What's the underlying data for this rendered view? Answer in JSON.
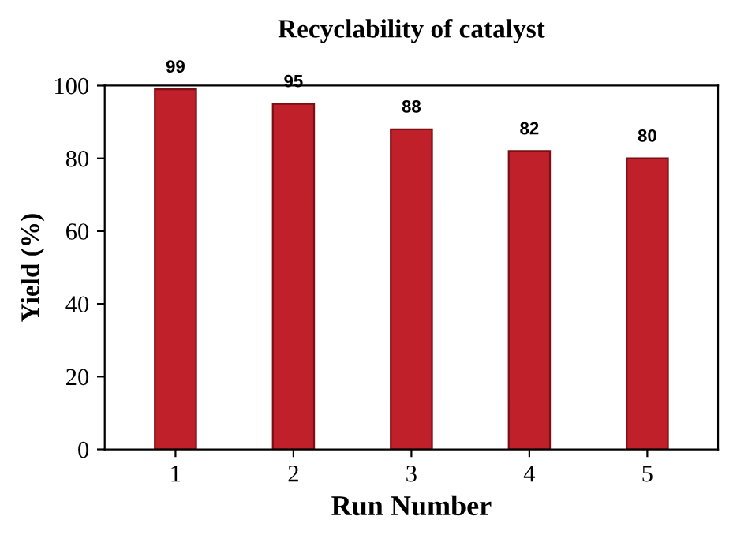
{
  "chart_data": {
    "type": "bar",
    "title": "Recyclability of catalyst",
    "xlabel": "Run Number",
    "ylabel": "Yield (%)",
    "categories": [
      "1",
      "2",
      "3",
      "4",
      "5"
    ],
    "values": [
      99,
      95,
      88,
      82,
      80
    ],
    "color": "#c0202a",
    "ylim": [
      0,
      100
    ],
    "yticks": [
      0,
      20,
      40,
      60,
      80,
      100
    ],
    "data_labels": true
  }
}
